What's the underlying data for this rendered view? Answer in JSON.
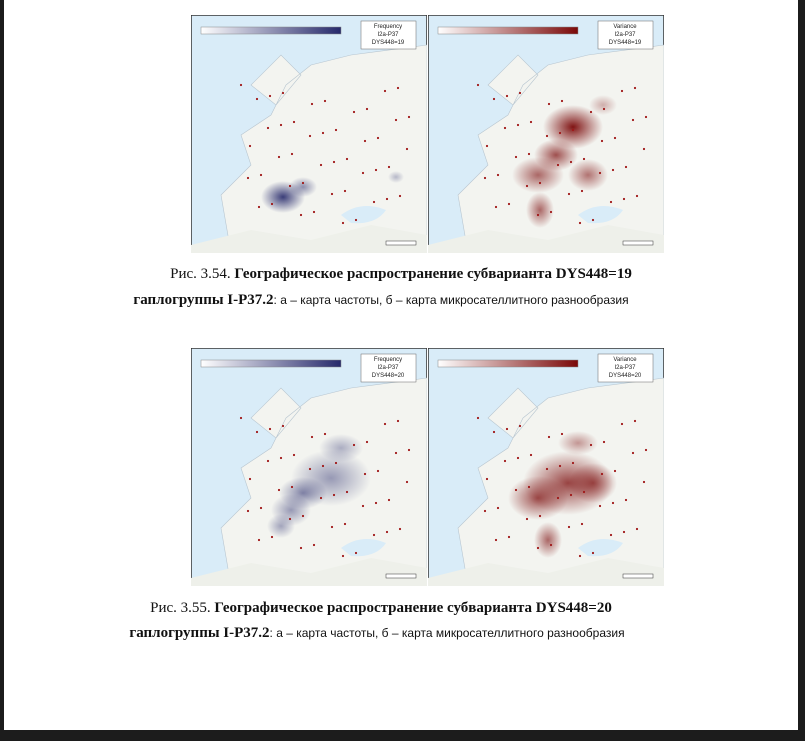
{
  "figures": [
    {
      "maps": [
        {
          "legend": [
            "Frequency",
            "I2a-P37",
            "DYS448=19"
          ]
        },
        {
          "legend": [
            "Variance",
            "I2a-P37",
            "DYS448=19"
          ]
        }
      ],
      "caption": {
        "number": "Рис. 3.54.",
        "title": "Географическое распространение субварианта DYS448=19",
        "line2_bold": "гаплогруппы I-P37.2",
        "line2_rest": ": а – карта частоты, б – карта микросателлитного разнообразия"
      }
    },
    {
      "maps": [
        {
          "legend": [
            "Frequency",
            "I2a-P37",
            "DYS448=20"
          ]
        },
        {
          "legend": [
            "Variance",
            "I2a-P37",
            "DYS448=20"
          ]
        }
      ],
      "caption": {
        "number": "Рис. 3.55.",
        "title": "Географическое распространение субварианта DYS448=20",
        "line2_bold": "гаплогруппы I-P37.2",
        "line2_rest": ": а – карта частоты, б – карта микросателлитного разнообразия"
      }
    }
  ]
}
